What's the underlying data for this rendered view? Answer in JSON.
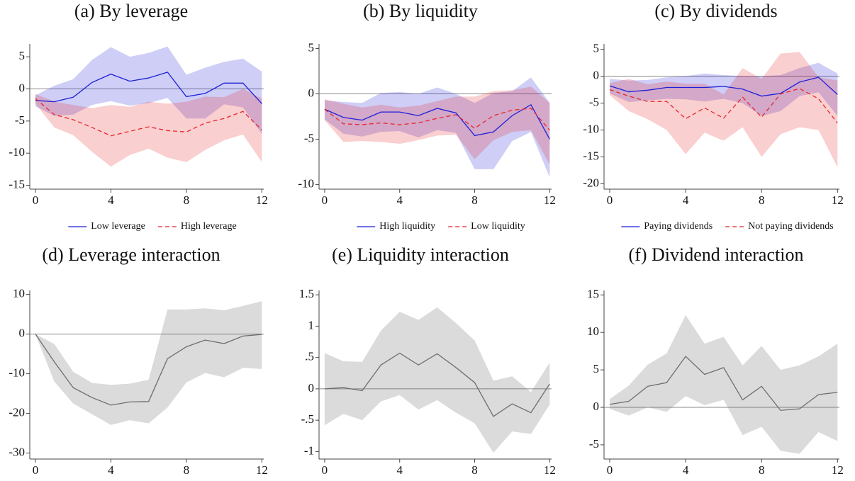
{
  "chart_data": [
    {
      "type": "line",
      "title": "(a) By leverage",
      "x": [
        0,
        1,
        2,
        3,
        4,
        5,
        6,
        7,
        8,
        9,
        10,
        11,
        12
      ],
      "xlim": [
        -0.3,
        12.1
      ],
      "xticks": [
        0,
        4,
        8,
        12
      ],
      "ylim": [
        -15.6,
        7
      ],
      "yticks": [
        5,
        0,
        -5,
        -10,
        -15
      ],
      "hline": 0,
      "series": [
        {
          "name": "Low leverage",
          "color": "#1f1fd8",
          "line_style": "solid",
          "values": [
            -1.8,
            -2.0,
            -1.3,
            1.0,
            2.3,
            1.2,
            1.7,
            2.6,
            -1.2,
            -0.7,
            0.9,
            0.9,
            -2.3
          ],
          "upper": [
            -1,
            0.5,
            1.5,
            4.5,
            6.5,
            5,
            5.6,
            6.6,
            2.2,
            3.3,
            4.2,
            4.7,
            2.7
          ],
          "lower": [
            -2.7,
            -4.2,
            -4,
            -2.5,
            -1.9,
            -2.6,
            -2.2,
            -1.4,
            -4.6,
            -4.6,
            -2.4,
            -2.9,
            -7
          ]
        },
        {
          "name": "High leverage",
          "color": "#e8262a",
          "line_style": "dashed",
          "values": [
            -1.5,
            -4,
            -4.8,
            -6,
            -7.3,
            -6.6,
            -5.9,
            -6.5,
            -6.7,
            -5.3,
            -4.6,
            -3.5,
            -6.4
          ],
          "upper": [
            -0.8,
            -2,
            -2.5,
            -3,
            -2.5,
            -2.8,
            -2,
            -2.3,
            -2,
            -1.2,
            -1.3,
            0,
            -1.5
          ],
          "lower": [
            -2.3,
            -6,
            -7.2,
            -9.8,
            -12.1,
            -10.3,
            -9.3,
            -10.7,
            -11.4,
            -9.5,
            -8,
            -7.1,
            -11.4
          ]
        }
      ]
    },
    {
      "type": "line",
      "title": "(b) By liquidity",
      "x": [
        0,
        1,
        2,
        3,
        4,
        5,
        6,
        7,
        8,
        9,
        10,
        11,
        12
      ],
      "xlim": [
        -0.3,
        12.1
      ],
      "xticks": [
        0,
        4,
        8,
        12
      ],
      "ylim": [
        -10.5,
        5.5
      ],
      "yticks": [
        5,
        0,
        -5,
        -10
      ],
      "hline": 0,
      "series": [
        {
          "name": "High liquidity",
          "color": "#1f1fd8",
          "line_style": "solid",
          "values": [
            -1.7,
            -2.6,
            -2.9,
            -2.0,
            -2.0,
            -2.4,
            -1.6,
            -2.1,
            -4.6,
            -4.2,
            -2.4,
            -1.2,
            -5.0
          ],
          "upper": [
            -0.7,
            -0.9,
            -1.0,
            0.1,
            0.2,
            0,
            0.7,
            0,
            -1,
            0.1,
            0.3,
            1.8,
            -1
          ],
          "lower": [
            -2.8,
            -4.4,
            -4.7,
            -4.2,
            -4.1,
            -4.8,
            -4,
            -4.3,
            -8.3,
            -8.3,
            -5.2,
            -4.2,
            -9.2
          ]
        },
        {
          "name": "Low liquidity",
          "color": "#e8262a",
          "line_style": "dashed",
          "values": [
            -1.7,
            -3.3,
            -3.4,
            -3.2,
            -3.4,
            -3.2,
            -2.7,
            -2.3,
            -3.8,
            -2.4,
            -1.8,
            -1.6,
            -4.0
          ],
          "upper": [
            -0.6,
            -1.1,
            -1.5,
            -1.2,
            -1.5,
            -1.3,
            -0.8,
            -0.3,
            -0.3,
            0.3,
            0.4,
            0.8,
            -1
          ],
          "lower": [
            -2.9,
            -5.3,
            -5.2,
            -5.3,
            -5.5,
            -5.1,
            -4.6,
            -4.5,
            -7.2,
            -5.1,
            -4.2,
            -4,
            -7.8
          ]
        }
      ]
    },
    {
      "type": "line",
      "title": "(c) By dividends",
      "x": [
        0,
        1,
        2,
        3,
        4,
        5,
        6,
        7,
        8,
        9,
        10,
        11,
        12
      ],
      "xlim": [
        -0.3,
        12.1
      ],
      "xticks": [
        0,
        4,
        8,
        12
      ],
      "ylim": [
        -21,
        6
      ],
      "yticks": [
        5,
        0,
        -5,
        -10,
        -15,
        -20
      ],
      "hline": 0,
      "series": [
        {
          "name": "Paying dividends",
          "color": "#1f1fd8",
          "line_style": "solid",
          "values": [
            -1.8,
            -2.9,
            -2.6,
            -2.1,
            -2.1,
            -2.1,
            -1.9,
            -2.4,
            -3.7,
            -3.2,
            -1.1,
            -0.2,
            -3.4
          ],
          "upper": [
            -0.5,
            -0.8,
            -0.7,
            -0.2,
            0,
            0.5,
            0.2,
            0,
            0,
            0.2,
            1.5,
            2.5,
            0.5
          ],
          "lower": [
            -3.2,
            -4.8,
            -4.5,
            -4.2,
            -4.3,
            -4.7,
            -4.2,
            -5,
            -7.4,
            -6.5,
            -3.7,
            -3,
            -7.4
          ]
        },
        {
          "name": "Not paying dividends",
          "color": "#e8262a",
          "line_style": "dashed",
          "values": [
            -2.5,
            -3.7,
            -4.7,
            -4.7,
            -7.9,
            -5.9,
            -7.8,
            -3.9,
            -7.6,
            -3.3,
            -2.3,
            -4.2,
            -8.7
          ],
          "upper": [
            -1.3,
            -0.5,
            -1.5,
            -1,
            -1.4,
            -1.4,
            -3.4,
            1.5,
            -0.5,
            4.2,
            4.5,
            -0.2,
            -0.8
          ],
          "lower": [
            -3.5,
            -6.5,
            -8,
            -10,
            -14.5,
            -10.5,
            -12,
            -9.5,
            -15,
            -10.8,
            -9.5,
            -10,
            -16.9
          ]
        }
      ]
    },
    {
      "type": "line",
      "title": "(d) Leverage interaction",
      "x": [
        0,
        1,
        2,
        3,
        4,
        5,
        6,
        7,
        8,
        9,
        10,
        11,
        12
      ],
      "xlim": [
        -0.3,
        12.1
      ],
      "xticks": [
        0,
        4,
        8,
        12
      ],
      "ylim": [
        -31.5,
        11
      ],
      "yticks": [
        10,
        0,
        -10,
        -20,
        -30
      ],
      "hline": 0,
      "series": [
        {
          "color": "#6e6e6e",
          "line_style": "solid",
          "values": [
            0,
            -7,
            -13.5,
            -16,
            -17.9,
            -17.1,
            -17,
            -6.2,
            -3.2,
            -1.5,
            -2.4,
            -0.5,
            -0.1
          ],
          "upper": [
            0,
            -2.5,
            -9.5,
            -12.3,
            -12.8,
            -12.5,
            -11.5,
            6.2,
            6.2,
            6.5,
            6,
            7.1,
            8.3
          ],
          "lower": [
            0,
            -12,
            -17.5,
            -20.2,
            -22.9,
            -21.7,
            -22.5,
            -18.5,
            -12.2,
            -9.8,
            -10.9,
            -8.5,
            -8.8
          ]
        }
      ]
    },
    {
      "type": "line",
      "title": "(e) Liquidity interaction",
      "x": [
        0,
        1,
        2,
        3,
        4,
        5,
        6,
        7,
        8,
        9,
        10,
        11,
        12
      ],
      "xlim": [
        -0.3,
        12.1
      ],
      "xticks": [
        0,
        4,
        8,
        12
      ],
      "ylim": [
        -1.12,
        1.57
      ],
      "yticks": [
        1.5,
        1,
        {
          "value": 0.5,
          "label": ".5"
        },
        0,
        {
          "value": -0.5,
          "label": "-.5"
        },
        -1
      ],
      "hline": 0,
      "series": [
        {
          "color": "#6e6e6e",
          "line_style": "solid",
          "values": [
            0,
            0.02,
            -0.03,
            0.38,
            0.57,
            0.38,
            0.56,
            0.34,
            0.1,
            -0.44,
            -0.24,
            -0.38,
            0.08
          ],
          "upper": [
            0.57,
            0.44,
            0.43,
            0.93,
            1.23,
            1.1,
            1.3,
            1.05,
            0.77,
            0.13,
            0.2,
            -0.05,
            0.42
          ],
          "lower": [
            -0.58,
            -0.4,
            -0.5,
            -0.2,
            -0.1,
            -0.33,
            -0.18,
            -0.38,
            -0.55,
            -1.02,
            -0.68,
            -0.72,
            -0.25
          ]
        }
      ]
    },
    {
      "type": "line",
      "title": "(f) Dividend interaction",
      "x": [
        0,
        1,
        2,
        3,
        4,
        5,
        6,
        7,
        8,
        9,
        10,
        11,
        12
      ],
      "xlim": [
        -0.3,
        12.1
      ],
      "xticks": [
        0,
        4,
        8,
        12
      ],
      "ylim": [
        -6.9,
        15.6
      ],
      "yticks": [
        15,
        10,
        5,
        0,
        -5
      ],
      "hline": 0,
      "series": [
        {
          "color": "#6e6e6e",
          "line_style": "solid",
          "values": [
            0.4,
            0.8,
            2.8,
            3.3,
            6.8,
            4.4,
            5.3,
            1.0,
            2.8,
            -0.4,
            -0.2,
            1.7,
            2.0
          ],
          "upper": [
            1.1,
            2.9,
            5.7,
            7.2,
            12.3,
            8.5,
            9.4,
            5.6,
            8.2,
            5.0,
            5.6,
            6.8,
            8.5
          ],
          "lower": [
            -0.2,
            -1.1,
            0,
            -0.6,
            1.5,
            0.3,
            1,
            -3.7,
            -2.6,
            -5.8,
            -6.2,
            -3.3,
            -4.5
          ]
        }
      ]
    }
  ]
}
